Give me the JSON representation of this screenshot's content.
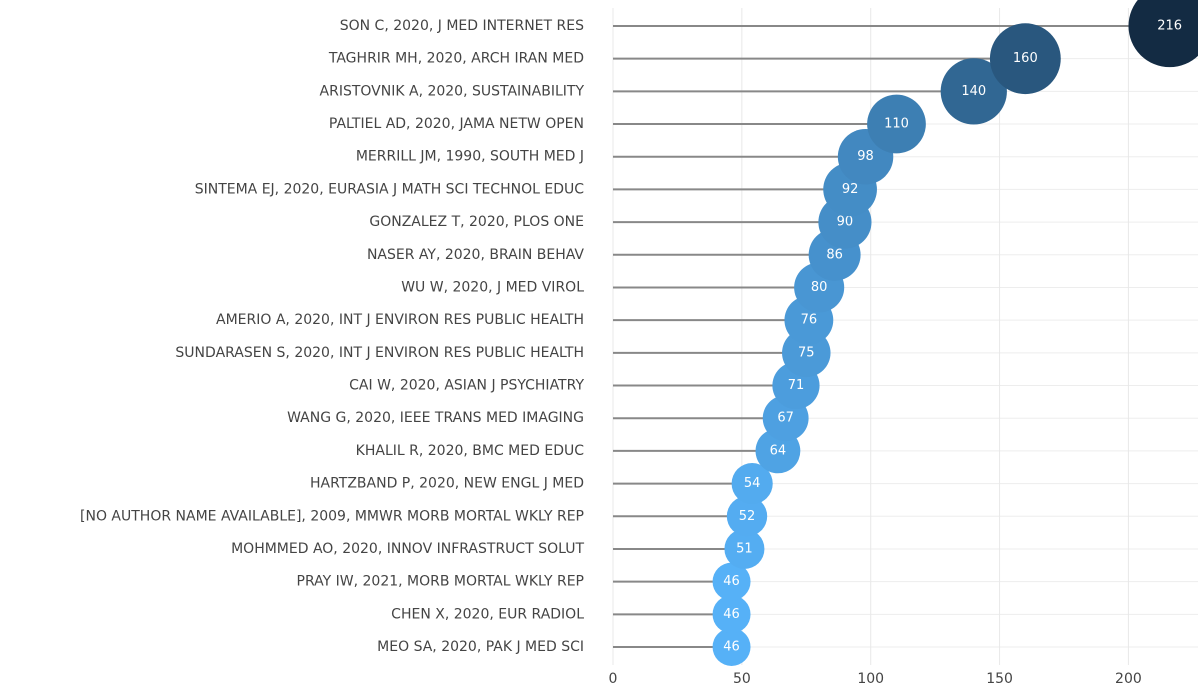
{
  "chart_data": {
    "type": "lollipop",
    "categories": [
      "SON C, 2020, J MED INTERNET RES",
      "TAGHRIR MH, 2020, ARCH IRAN MED",
      "ARISTOVNIK A, 2020, SUSTAINABILITY",
      "PALTIEL AD, 2020, JAMA NETW OPEN",
      "MERRILL JM, 1990, SOUTH MED J",
      "SINTEMA EJ, 2020, EURASIA J MATH SCI TECHNOL EDUC",
      "GONZALEZ T, 2020, PLOS ONE",
      "NASER AY, 2020, BRAIN BEHAV",
      "WU W, 2020, J MED VIROL",
      "AMERIO A, 2020, INT J ENVIRON RES PUBLIC HEALTH",
      "SUNDARASEN S, 2020, INT J ENVIRON RES PUBLIC HEALTH",
      "CAI W, 2020, ASIAN J PSYCHIATRY",
      "WANG G, 2020, IEEE TRANS MED IMAGING",
      "KHALIL R, 2020, BMC MED EDUC",
      "HARTZBAND P, 2020, NEW ENGL J MED",
      "[NO AUTHOR NAME AVAILABLE], 2009, MMWR MORB MORTAL WKLY REP",
      "MOHMMED AO, 2020, INNOV INFRASTRUCT SOLUT",
      "PRAY IW, 2021, MORB MORTAL WKLY REP",
      "CHEN X, 2020, EUR RADIOL",
      "MEO SA, 2020, PAK J MED SCI"
    ],
    "values": [
      216,
      160,
      140,
      110,
      98,
      92,
      90,
      86,
      80,
      76,
      75,
      71,
      67,
      64,
      54,
      52,
      51,
      46,
      46,
      46
    ],
    "xlim": [
      0,
      227
    ],
    "xticks": [
      0,
      50,
      100,
      150,
      200
    ],
    "grid": true,
    "color_low": "#56b1f7",
    "color_high": "#132b43",
    "stem_color": "#888888"
  }
}
